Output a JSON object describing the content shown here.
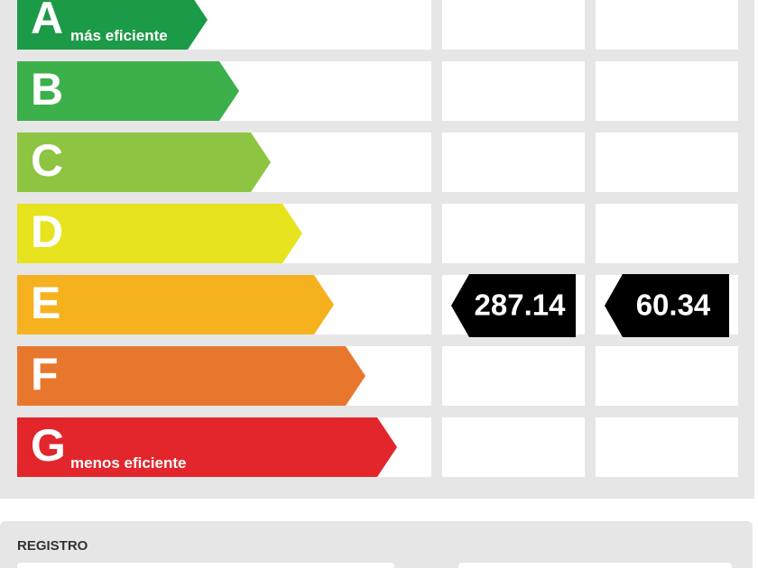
{
  "label": {
    "rows": [
      {
        "letter": "A",
        "note": "más eficiente",
        "color": "#1b9a48"
      },
      {
        "letter": "B",
        "color": "#3cb04a"
      },
      {
        "letter": "C",
        "color": "#8dc441"
      },
      {
        "letter": "D",
        "color": "#e7e31f"
      },
      {
        "letter": "E",
        "color": "#f6b21e"
      },
      {
        "letter": "F",
        "color": "#e8772e"
      },
      {
        "letter": "G",
        "note": "menos eficiente",
        "color": "#e2262b"
      }
    ],
    "ratings": [
      {
        "row": 4,
        "column": 1,
        "value": 287.14
      },
      {
        "row": 4,
        "column": 2,
        "value": 60.34
      }
    ]
  },
  "registro": {
    "title": "REGISTRO"
  }
}
